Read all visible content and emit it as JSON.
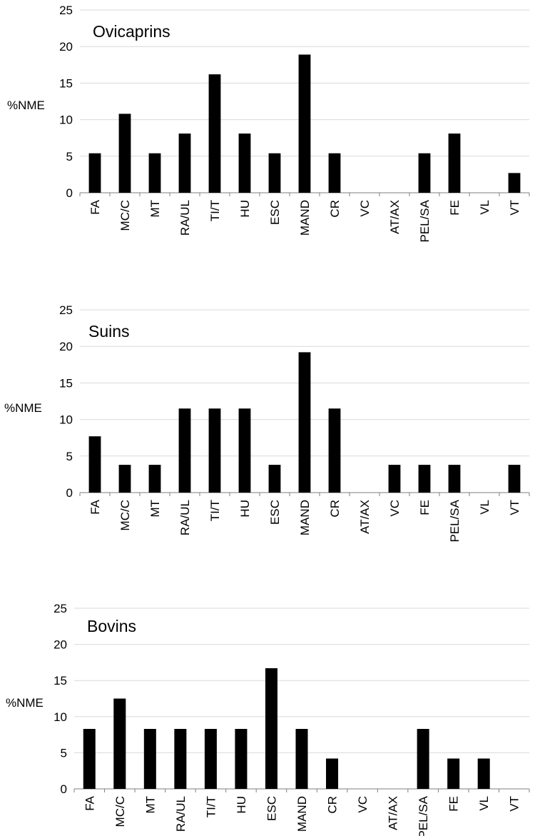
{
  "colors": {
    "bar": "#000000",
    "grid": "#d9d9d9",
    "axis": "#7f7f7f",
    "text": "#000000"
  },
  "chart_data": [
    {
      "type": "bar",
      "title": "Ovicaprins",
      "ylabel": "%NME",
      "xlabel": "",
      "ylim": [
        0,
        25
      ],
      "yticks": [
        0,
        5,
        10,
        15,
        20,
        25
      ],
      "grid": true,
      "categories": [
        "FA",
        "MC/C",
        "MT",
        "RA/UL",
        "TI/T",
        "HU",
        "ESC",
        "MAND",
        "CR",
        "VC",
        "AT/AX",
        "PEL/SA",
        "FE",
        "VL",
        "VT"
      ],
      "values": [
        5.4,
        10.8,
        5.4,
        8.1,
        16.2,
        8.1,
        5.4,
        18.9,
        5.4,
        0,
        0,
        5.4,
        8.1,
        0,
        2.7
      ]
    },
    {
      "type": "bar",
      "title": "Suins",
      "ylabel": "%NME",
      "xlabel": "",
      "ylim": [
        0,
        25
      ],
      "yticks": [
        0,
        5,
        10,
        15,
        20,
        25
      ],
      "grid": true,
      "categories": [
        "FA",
        "MC/C",
        "MT",
        "RA/UL",
        "TI/T",
        "HU",
        "ESC",
        "MAND",
        "CR",
        "AT/AX",
        "VC",
        "FE",
        "PEL/SA",
        "VL",
        "VT"
      ],
      "values": [
        7.7,
        3.8,
        3.8,
        11.5,
        11.5,
        11.5,
        3.8,
        19.2,
        11.5,
        0,
        3.8,
        3.8,
        3.8,
        0,
        3.8
      ]
    },
    {
      "type": "bar",
      "title": "Bovins",
      "ylabel": "%NME",
      "xlabel": "",
      "ylim": [
        0,
        25
      ],
      "yticks": [
        0,
        5,
        10,
        15,
        20,
        25
      ],
      "grid": true,
      "categories": [
        "FA",
        "MC/C",
        "MT",
        "RA/UL",
        "TI/T",
        "HU",
        "ESC",
        "MAND",
        "CR",
        "VC",
        "AT/AX",
        "PEL/SA",
        "FE",
        "VL",
        "VT"
      ],
      "values": [
        8.3,
        12.5,
        8.3,
        8.3,
        8.3,
        8.3,
        16.7,
        8.3,
        4.2,
        0,
        0,
        8.3,
        4.2,
        4.2,
        0
      ]
    }
  ]
}
